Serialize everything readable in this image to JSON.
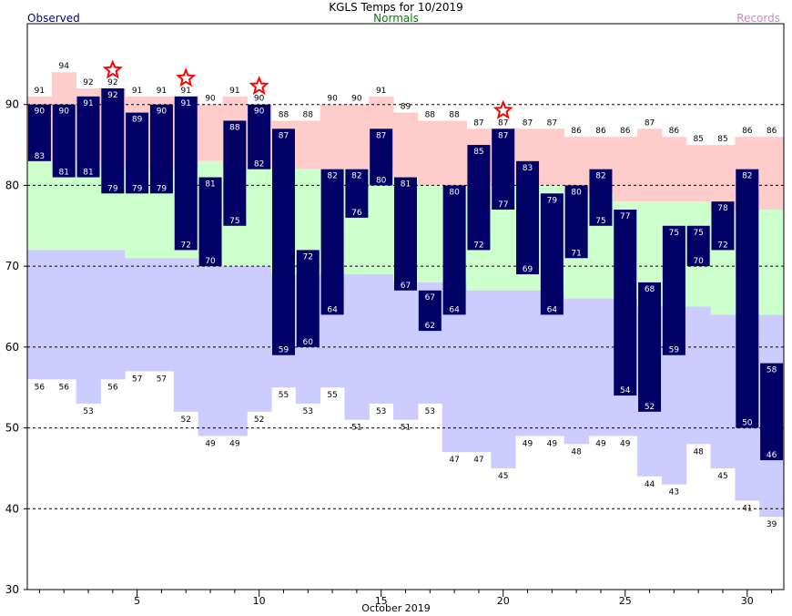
{
  "header": {
    "title": "KGLS Temps for 10/2019",
    "observed_label": "Observed",
    "normals_label": "Normals",
    "records_label": "Records"
  },
  "colors": {
    "observed_bar": "#000066",
    "record_band": "#ffcccc",
    "normal_band": "#ccffcc",
    "low_band": "#ccccff",
    "star": "#ff0000"
  },
  "chart_data": {
    "type": "bar",
    "title": "KGLS Temps for 10/2019",
    "xlabel": "October 2019",
    "ylabel": "",
    "ylim": [
      30,
      100
    ],
    "xlim": [
      0.5,
      31.5
    ],
    "yticks": [
      30,
      40,
      50,
      60,
      70,
      80,
      90
    ],
    "xticks": [
      5,
      10,
      15,
      20,
      25,
      30
    ],
    "gridlines_y": [
      40,
      50,
      60,
      70,
      80,
      90
    ],
    "days": [
      1,
      2,
      3,
      4,
      5,
      6,
      7,
      8,
      9,
      10,
      11,
      12,
      13,
      14,
      15,
      16,
      17,
      18,
      19,
      20,
      21,
      22,
      23,
      24,
      25,
      26,
      27,
      28,
      29,
      30,
      31
    ],
    "observed_high": [
      90,
      90,
      91,
      92,
      89,
      90,
      91,
      81,
      88,
      90,
      87,
      72,
      82,
      82,
      87,
      81,
      67,
      80,
      85,
      87,
      83,
      79,
      80,
      82,
      77,
      68,
      75,
      75,
      78,
      82,
      58
    ],
    "observed_low": [
      83,
      81,
      81,
      79,
      79,
      79,
      72,
      70,
      75,
      82,
      59,
      60,
      64,
      76,
      80,
      67,
      62,
      64,
      72,
      77,
      69,
      64,
      71,
      75,
      54,
      52,
      59,
      70,
      72,
      50,
      46
    ],
    "record_high": [
      91,
      94,
      92,
      92,
      91,
      91,
      91,
      90,
      91,
      90,
      88,
      88,
      90,
      90,
      91,
      89,
      88,
      88,
      87,
      87,
      87,
      87,
      86,
      86,
      86,
      87,
      86,
      85,
      85,
      86,
      86
    ],
    "normal_high": [
      83,
      83,
      83,
      82,
      82,
      82,
      82,
      83,
      82,
      82,
      82,
      82,
      82,
      82,
      82,
      81,
      80,
      80,
      80,
      80,
      80,
      80,
      79,
      79,
      78,
      78,
      78,
      78,
      77,
      77,
      77
    ],
    "normal_low": [
      72,
      72,
      72,
      72,
      71,
      71,
      71,
      70,
      70,
      70,
      69,
      69,
      69,
      69,
      69,
      68,
      68,
      68,
      67,
      67,
      67,
      67,
      66,
      66,
      66,
      65,
      65,
      65,
      64,
      64,
      64
    ],
    "record_low": [
      56,
      56,
      53,
      56,
      57,
      57,
      52,
      49,
      49,
      52,
      55,
      53,
      55,
      51,
      53,
      51,
      53,
      47,
      47,
      45,
      49,
      49,
      48,
      49,
      49,
      44,
      43,
      48,
      45,
      41,
      39
    ],
    "record_set_days": [
      4,
      7,
      10,
      20
    ]
  }
}
